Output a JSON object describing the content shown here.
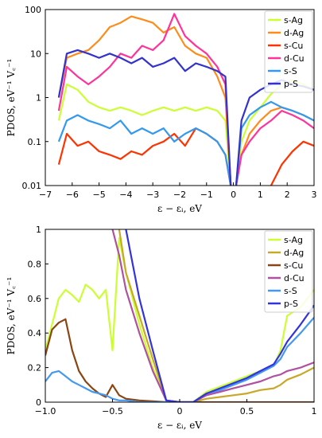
{
  "chart_data": [
    {
      "type": "line",
      "yscale": "log",
      "legend": "upper right",
      "ylabel": "PDOS, eV⁻¹ V꜀⁻¹",
      "xlabel": "ε − εᵢ, eV",
      "xlim": [
        -7,
        3
      ],
      "xticks": [
        {
          "value": -7,
          "label": "−7"
        },
        {
          "value": -6,
          "label": "−6"
        },
        {
          "value": -5,
          "label": "−5"
        },
        {
          "value": -4,
          "label": "−4"
        },
        {
          "value": -3,
          "label": "−3"
        },
        {
          "value": -2,
          "label": "−2"
        },
        {
          "value": -1,
          "label": "−1"
        },
        0,
        1,
        2,
        3
      ],
      "ylim": [
        0.01,
        100
      ],
      "yticks": [
        0.01,
        0.1,
        1,
        10,
        100
      ],
      "x": [
        -6.5,
        -6.2,
        -5.8,
        -5.4,
        -5,
        -4.6,
        -4.2,
        -3.8,
        -3.4,
        -3,
        -2.6,
        -2.2,
        -1.8,
        -1.4,
        -1,
        -0.6,
        -0.3,
        -0.1,
        0,
        0.1,
        0.3,
        0.6,
        1,
        1.4,
        1.8,
        2.2,
        2.6,
        3
      ],
      "series": [
        {
          "name": "s-Ag",
          "color": "#ccff33",
          "values": [
            0.3,
            2,
            1.5,
            0.8,
            0.6,
            0.5,
            0.6,
            0.5,
            0.4,
            0.5,
            0.6,
            0.5,
            0.6,
            0.5,
            0.6,
            0.5,
            0.3,
            0.01,
            null,
            0.01,
            0.1,
            0.3,
            0.6,
            1.2,
            2,
            2.5,
            2,
            1.5
          ]
        },
        {
          "name": "d-Ag",
          "color": "#ff8c1a",
          "values": [
            1,
            8,
            10,
            12,
            20,
            40,
            50,
            70,
            60,
            50,
            30,
            40,
            15,
            10,
            8,
            3,
            1,
            0.01,
            null,
            0.01,
            0.05,
            0.15,
            0.3,
            0.5,
            0.6,
            0.5,
            0.4,
            0.3
          ]
        },
        {
          "name": "s-Cu",
          "color": "#ff3300",
          "values": [
            0.03,
            0.15,
            0.08,
            0.1,
            0.06,
            0.05,
            0.04,
            0.06,
            0.05,
            0.08,
            0.1,
            0.15,
            0.08,
            0.2,
            0.15,
            0.1,
            0.05,
            0.01,
            null,
            null,
            null,
            null,
            null,
            0.01,
            0.03,
            0.06,
            0.1,
            0.08
          ]
        },
        {
          "name": "d-Cu",
          "color": "#ff3399",
          "values": [
            0.5,
            5,
            3,
            2,
            3,
            5,
            10,
            8,
            15,
            12,
            20,
            80,
            25,
            15,
            10,
            5,
            2,
            0.01,
            null,
            0.01,
            0.05,
            0.1,
            0.2,
            0.3,
            0.5,
            0.4,
            0.3,
            0.2
          ]
        },
        {
          "name": "s-S",
          "color": "#3399ee",
          "values": [
            0.1,
            0.3,
            0.4,
            0.3,
            0.25,
            0.2,
            0.3,
            0.15,
            0.2,
            0.15,
            0.2,
            0.1,
            0.15,
            0.2,
            0.15,
            0.1,
            0.05,
            0.01,
            null,
            0.01,
            0.2,
            0.4,
            0.6,
            0.8,
            0.6,
            0.5,
            0.4,
            0.3
          ]
        },
        {
          "name": "p-S",
          "color": "#3333cc",
          "values": [
            1,
            10,
            12,
            10,
            8,
            10,
            8,
            6,
            8,
            5,
            6,
            8,
            4,
            6,
            5,
            4,
            3,
            0.01,
            null,
            0.01,
            0.3,
            1,
            1.5,
            2,
            2.5,
            2,
            1.8,
            1.5
          ]
        }
      ]
    },
    {
      "type": "line",
      "legend": "upper right",
      "ylabel": "PDOS, eV⁻¹ V꜀⁻¹",
      "xlabel": "ε − εᵢ, eV",
      "xlim": [
        -1,
        1
      ],
      "xticks": [
        {
          "value": -1,
          "label": "−1.0"
        },
        {
          "value": -0.5,
          "label": "−0.5"
        },
        0,
        0.5,
        1
      ],
      "ylim": [
        0,
        1
      ],
      "yticks": [
        0,
        0.2,
        0.4,
        0.6,
        0.8,
        1
      ],
      "x": [
        -1,
        -0.95,
        -0.9,
        -0.85,
        -0.8,
        -0.75,
        -0.7,
        -0.65,
        -0.6,
        -0.55,
        -0.5,
        -0.45,
        -0.4,
        -0.3,
        -0.2,
        -0.1,
        0,
        0.1,
        0.2,
        0.3,
        0.4,
        0.5,
        0.6,
        0.7,
        0.75,
        0.8,
        0.9,
        1
      ],
      "series": [
        {
          "name": "s-Ag",
          "color": "#ccff33",
          "values": [
            0.3,
            0.45,
            0.6,
            0.65,
            0.62,
            0.58,
            0.68,
            0.65,
            0.6,
            0.65,
            0.3,
            0.95,
            0.75,
            0.45,
            0.2,
            0.01,
            0,
            0,
            0.06,
            0.09,
            0.12,
            0.15,
            0.18,
            0.21,
            0.3,
            0.5,
            0.55,
            0.65
          ]
        },
        {
          "name": "d-Ag",
          "color": "#c8a82a",
          "values": [
            null,
            null,
            null,
            null,
            null,
            null,
            null,
            null,
            null,
            null,
            null,
            1,
            0.75,
            0.5,
            0.25,
            0.01,
            0,
            0,
            0.02,
            0.03,
            0.04,
            0.05,
            0.07,
            0.08,
            0.1,
            0.13,
            0.16,
            0.2
          ]
        },
        {
          "name": "s-Cu",
          "color": "#8b4513",
          "values": [
            0.27,
            0.42,
            0.46,
            0.48,
            0.3,
            0.18,
            0.12,
            0.08,
            0.05,
            0.03,
            0.1,
            0.04,
            0.02,
            0.01,
            0.005,
            0,
            0,
            0,
            0,
            0,
            0,
            0,
            0,
            0,
            0,
            0,
            0,
            0
          ]
        },
        {
          "name": "d-Cu",
          "color": "#b050a0",
          "values": [
            null,
            null,
            null,
            null,
            null,
            null,
            null,
            null,
            null,
            null,
            1,
            0.85,
            0.65,
            0.4,
            0.18,
            0.01,
            0,
            0,
            0.04,
            0.06,
            0.08,
            0.1,
            0.12,
            0.15,
            0.16,
            0.18,
            0.2,
            0.23
          ]
        },
        {
          "name": "s-S",
          "color": "#4499ee",
          "values": [
            0.12,
            0.17,
            0.18,
            0.15,
            0.12,
            0.1,
            0.08,
            0.06,
            0.05,
            0.04,
            0.02,
            0.01,
            0.01,
            0,
            0,
            0,
            0,
            0,
            0.05,
            0.07,
            0.1,
            0.13,
            0.17,
            0.21,
            0.25,
            0.32,
            0.4,
            0.49
          ]
        },
        {
          "name": "p-S",
          "color": "#3333dd",
          "values": [
            null,
            null,
            null,
            null,
            null,
            null,
            null,
            null,
            null,
            null,
            null,
            null,
            1,
            0.6,
            0.3,
            0.01,
            0,
            0,
            0.05,
            0.08,
            0.11,
            0.14,
            0.18,
            0.22,
            0.28,
            0.35,
            0.45,
            0.56
          ]
        }
      ]
    }
  ]
}
